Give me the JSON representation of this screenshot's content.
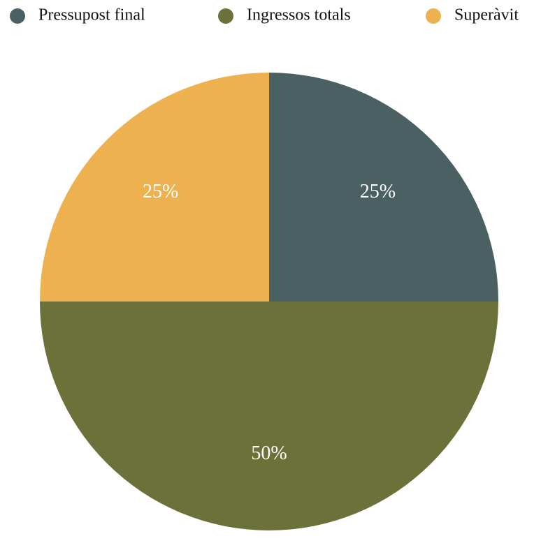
{
  "chart_data": {
    "type": "pie",
    "categories": [
      "Pressupost final",
      "Ingressos totals",
      "Superàvit"
    ],
    "values": [
      25,
      50,
      25
    ],
    "value_labels": [
      "25%",
      "50%",
      "25%"
    ],
    "colors": [
      "#4a6062",
      "#6b7139",
      "#edb24f"
    ]
  }
}
